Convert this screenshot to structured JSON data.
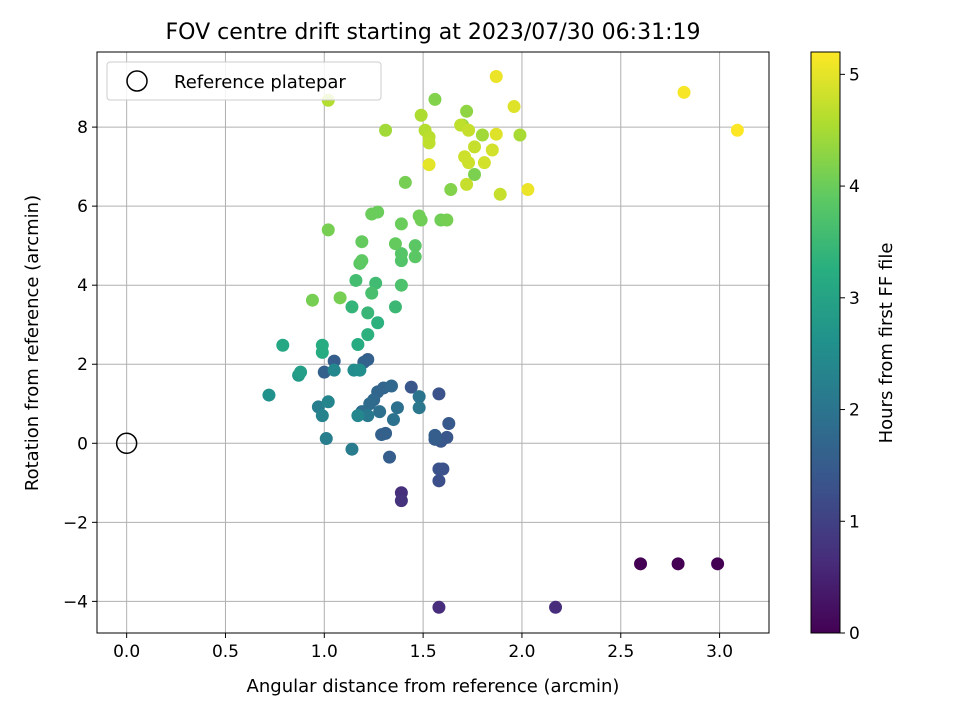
{
  "chart_data": {
    "type": "scatter",
    "title": "FOV centre drift starting at 2023/07/30 06:31:19",
    "xlabel": "Angular distance from reference (arcmin)",
    "ylabel": "Rotation from reference (arcmin)",
    "xlim": [
      -0.15,
      3.25
    ],
    "ylim": [
      -4.8,
      9.9
    ],
    "x_ticks": [
      0.0,
      0.5,
      1.0,
      1.5,
      2.0,
      2.5,
      3.0
    ],
    "x_tick_labels": [
      "0.0",
      "0.5",
      "1.0",
      "1.5",
      "2.0",
      "2.5",
      "3.0"
    ],
    "y_ticks": [
      -4,
      -2,
      0,
      2,
      4,
      6,
      8
    ],
    "y_tick_labels": [
      "−4",
      "−2",
      "0",
      "2",
      "4",
      "6",
      "8"
    ],
    "grid": true,
    "legend": {
      "position": "top-left",
      "entries": [
        "Reference platepar"
      ]
    },
    "reference_point": {
      "x": 0.0,
      "y": 0.0
    },
    "colorbar": {
      "label": "Hours from first FF file",
      "range": [
        0,
        5.2
      ],
      "ticks": [
        0,
        1,
        2,
        3,
        4,
        5
      ],
      "tick_labels": [
        "0",
        "1",
        "2",
        "3",
        "4",
        "5"
      ],
      "colormap": "viridis"
    },
    "points": [
      {
        "x": 2.6,
        "y": -3.05,
        "c": 0.0
      },
      {
        "x": 2.79,
        "y": -3.05,
        "c": 0.0
      },
      {
        "x": 2.99,
        "y": -3.05,
        "c": 0.0
      },
      {
        "x": 1.58,
        "y": -4.15,
        "c": 0.65
      },
      {
        "x": 2.17,
        "y": -4.15,
        "c": 0.65
      },
      {
        "x": 1.39,
        "y": -1.25,
        "c": 0.7
      },
      {
        "x": 1.39,
        "y": -1.45,
        "c": 0.75
      },
      {
        "x": 1.58,
        "y": -0.95,
        "c": 1.25
      },
      {
        "x": 1.58,
        "y": -0.65,
        "c": 1.3
      },
      {
        "x": 1.6,
        "y": -0.65,
        "c": 1.3
      },
      {
        "x": 1.58,
        "y": 1.25,
        "c": 1.3
      },
      {
        "x": 1.44,
        "y": 1.42,
        "c": 1.4
      },
      {
        "x": 1.59,
        "y": 0.05,
        "c": 1.4
      },
      {
        "x": 1.62,
        "y": 0.15,
        "c": 1.4
      },
      {
        "x": 1.63,
        "y": 0.5,
        "c": 1.45
      },
      {
        "x": 1.56,
        "y": 0.1,
        "c": 1.5
      },
      {
        "x": 1.56,
        "y": 0.2,
        "c": 1.55
      },
      {
        "x": 1.33,
        "y": -0.35,
        "c": 1.55
      },
      {
        "x": 1.29,
        "y": 0.22,
        "c": 1.6
      },
      {
        "x": 1.31,
        "y": 0.25,
        "c": 1.6
      },
      {
        "x": 1.05,
        "y": 2.08,
        "c": 1.55
      },
      {
        "x": 1.0,
        "y": 1.8,
        "c": 1.6
      },
      {
        "x": 1.22,
        "y": 2.12,
        "c": 1.6
      },
      {
        "x": 1.2,
        "y": 2.05,
        "c": 1.65
      },
      {
        "x": 1.27,
        "y": 1.3,
        "c": 1.7
      },
      {
        "x": 1.3,
        "y": 1.4,
        "c": 1.7
      },
      {
        "x": 1.34,
        "y": 1.45,
        "c": 1.75
      },
      {
        "x": 1.25,
        "y": 1.1,
        "c": 1.75
      },
      {
        "x": 1.23,
        "y": 1.0,
        "c": 1.8
      },
      {
        "x": 1.19,
        "y": 0.8,
        "c": 1.85
      },
      {
        "x": 1.28,
        "y": 0.8,
        "c": 1.9
      },
      {
        "x": 1.37,
        "y": 0.9,
        "c": 1.9
      },
      {
        "x": 1.35,
        "y": 0.6,
        "c": 1.95
      },
      {
        "x": 1.48,
        "y": 1.18,
        "c": 2.0
      },
      {
        "x": 1.48,
        "y": 0.9,
        "c": 2.05
      },
      {
        "x": 1.22,
        "y": 0.7,
        "c": 2.1
      },
      {
        "x": 1.14,
        "y": -0.15,
        "c": 2.15
      },
      {
        "x": 1.01,
        "y": 0.12,
        "c": 2.2
      },
      {
        "x": 0.97,
        "y": 0.92,
        "c": 2.2
      },
      {
        "x": 0.99,
        "y": 0.7,
        "c": 2.3
      },
      {
        "x": 1.02,
        "y": 1.05,
        "c": 2.35
      },
      {
        "x": 1.17,
        "y": 0.7,
        "c": 2.4
      },
      {
        "x": 1.05,
        "y": 1.85,
        "c": 2.4
      },
      {
        "x": 1.15,
        "y": 1.85,
        "c": 2.5
      },
      {
        "x": 1.18,
        "y": 1.85,
        "c": 2.55
      },
      {
        "x": 0.72,
        "y": 1.22,
        "c": 2.6
      },
      {
        "x": 0.87,
        "y": 1.72,
        "c": 2.8
      },
      {
        "x": 0.88,
        "y": 1.8,
        "c": 2.9
      },
      {
        "x": 0.79,
        "y": 2.48,
        "c": 3.1
      },
      {
        "x": 0.99,
        "y": 2.48,
        "c": 3.2
      },
      {
        "x": 0.99,
        "y": 2.3,
        "c": 3.2
      },
      {
        "x": 1.17,
        "y": 2.5,
        "c": 3.2
      },
      {
        "x": 1.22,
        "y": 2.75,
        "c": 3.3
      },
      {
        "x": 1.27,
        "y": 3.05,
        "c": 3.3
      },
      {
        "x": 1.14,
        "y": 3.45,
        "c": 3.4
      },
      {
        "x": 1.22,
        "y": 3.3,
        "c": 3.45
      },
      {
        "x": 1.36,
        "y": 3.45,
        "c": 3.5
      },
      {
        "x": 1.26,
        "y": 4.05,
        "c": 3.55
      },
      {
        "x": 1.16,
        "y": 4.12,
        "c": 3.6
      },
      {
        "x": 1.24,
        "y": 3.8,
        "c": 3.65
      },
      {
        "x": 1.39,
        "y": 4.0,
        "c": 3.7
      },
      {
        "x": 1.39,
        "y": 4.62,
        "c": 3.75
      },
      {
        "x": 1.39,
        "y": 4.8,
        "c": 3.8
      },
      {
        "x": 1.46,
        "y": 4.72,
        "c": 3.85
      },
      {
        "x": 1.46,
        "y": 5.0,
        "c": 3.85
      },
      {
        "x": 1.18,
        "y": 4.55,
        "c": 3.85
      },
      {
        "x": 1.19,
        "y": 4.62,
        "c": 3.9
      },
      {
        "x": 1.19,
        "y": 5.1,
        "c": 3.95
      },
      {
        "x": 1.36,
        "y": 5.05,
        "c": 3.95
      },
      {
        "x": 1.39,
        "y": 5.55,
        "c": 4.0
      },
      {
        "x": 1.24,
        "y": 5.8,
        "c": 4.0
      },
      {
        "x": 1.27,
        "y": 5.85,
        "c": 4.0
      },
      {
        "x": 1.48,
        "y": 5.75,
        "c": 4.05
      },
      {
        "x": 1.49,
        "y": 5.65,
        "c": 4.05
      },
      {
        "x": 1.59,
        "y": 5.65,
        "c": 4.05
      },
      {
        "x": 1.62,
        "y": 5.65,
        "c": 4.1
      },
      {
        "x": 1.02,
        "y": 5.4,
        "c": 4.1
      },
      {
        "x": 0.94,
        "y": 3.62,
        "c": 4.1
      },
      {
        "x": 1.08,
        "y": 3.68,
        "c": 4.1
      },
      {
        "x": 1.41,
        "y": 6.6,
        "c": 4.1
      },
      {
        "x": 1.76,
        "y": 6.8,
        "c": 4.15
      },
      {
        "x": 1.64,
        "y": 6.42,
        "c": 4.2
      },
      {
        "x": 1.56,
        "y": 8.7,
        "c": 4.2
      },
      {
        "x": 1.72,
        "y": 8.4,
        "c": 4.3
      },
      {
        "x": 1.7,
        "y": 8.05,
        "c": 4.4
      },
      {
        "x": 1.8,
        "y": 7.8,
        "c": 4.45
      },
      {
        "x": 1.31,
        "y": 7.92,
        "c": 4.45
      },
      {
        "x": 1.99,
        "y": 7.8,
        "c": 4.5
      },
      {
        "x": 1.49,
        "y": 8.3,
        "c": 4.55
      },
      {
        "x": 1.02,
        "y": 8.68,
        "c": 4.6
      },
      {
        "x": 1.51,
        "y": 7.92,
        "c": 4.6
      },
      {
        "x": 1.53,
        "y": 7.75,
        "c": 4.65
      },
      {
        "x": 1.53,
        "y": 7.6,
        "c": 4.7
      },
      {
        "x": 1.69,
        "y": 8.05,
        "c": 4.7
      },
      {
        "x": 1.73,
        "y": 7.92,
        "c": 4.75
      },
      {
        "x": 1.76,
        "y": 7.5,
        "c": 4.75
      },
      {
        "x": 1.71,
        "y": 7.25,
        "c": 4.8
      },
      {
        "x": 1.73,
        "y": 7.1,
        "c": 4.8
      },
      {
        "x": 1.72,
        "y": 6.55,
        "c": 4.75
      },
      {
        "x": 1.89,
        "y": 6.3,
        "c": 4.75
      },
      {
        "x": 1.81,
        "y": 7.1,
        "c": 4.85
      },
      {
        "x": 1.85,
        "y": 7.42,
        "c": 4.85
      },
      {
        "x": 1.87,
        "y": 7.82,
        "c": 4.95
      },
      {
        "x": 1.96,
        "y": 8.52,
        "c": 4.95
      },
      {
        "x": 1.53,
        "y": 7.05,
        "c": 5.0
      },
      {
        "x": 2.03,
        "y": 6.42,
        "c": 5.05
      },
      {
        "x": 1.87,
        "y": 9.28,
        "c": 5.05
      },
      {
        "x": 2.82,
        "y": 8.88,
        "c": 5.15
      },
      {
        "x": 3.09,
        "y": 7.92,
        "c": 5.2
      }
    ]
  }
}
